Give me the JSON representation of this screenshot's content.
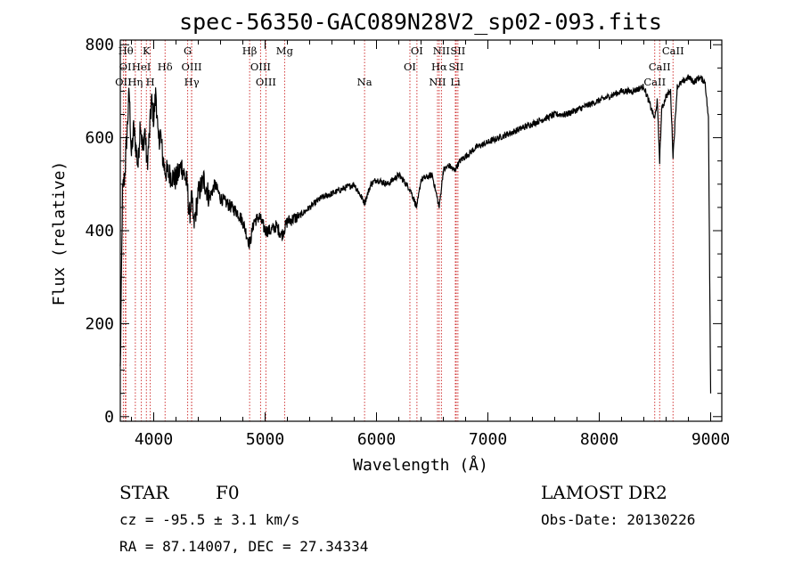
{
  "chart_data": {
    "type": "line",
    "title": "spec-56350-GAC089N28V2_sp02-093.fits",
    "xlabel": "Wavelength (Å)",
    "ylabel": "Flux (relative)",
    "xlim": [
      3700,
      9100
    ],
    "ylim": [
      -10,
      810
    ],
    "xticks": [
      4000,
      5000,
      6000,
      7000,
      8000,
      9000
    ],
    "yticks": [
      0,
      200,
      400,
      600,
      800
    ],
    "grid": false,
    "line_color": "#000000",
    "marker_color": "#cc2222",
    "series": [
      {
        "x": [
          3700,
          3720,
          3740,
          3760,
          3780,
          3800,
          3820,
          3840,
          3860,
          3880,
          3900,
          3920,
          3940,
          3960,
          3980,
          4000,
          4020,
          4040,
          4060,
          4080,
          4100,
          4150,
          4200,
          4250,
          4300,
          4320,
          4340,
          4360,
          4400,
          4450,
          4500,
          4550,
          4600,
          4650,
          4700,
          4750,
          4800,
          4861,
          4900,
          4950,
          5000,
          5050,
          5100,
          5150,
          5200,
          5300,
          5400,
          5500,
          5600,
          5700,
          5800,
          5893,
          5950,
          6000,
          6100,
          6200,
          6300,
          6363,
          6400,
          6500,
          6563,
          6600,
          6650,
          6700,
          6750,
          6800,
          6900,
          7000,
          7100,
          7200,
          7300,
          7400,
          7500,
          7600,
          7700,
          7800,
          7900,
          8000,
          8100,
          8200,
          8300,
          8400,
          8498,
          8520,
          8542,
          8560,
          8600,
          8640,
          8662,
          8700,
          8750,
          8800,
          8850,
          8900,
          8950,
          8980,
          9000
        ],
        "y": [
          100,
          480,
          520,
          610,
          700,
          560,
          620,
          580,
          540,
          640,
          570,
          620,
          540,
          600,
          680,
          640,
          700,
          590,
          610,
          560,
          530,
          520,
          510,
          540,
          500,
          430,
          470,
          410,
          480,
          510,
          470,
          500,
          470,
          460,
          450,
          440,
          420,
          370,
          420,
          430,
          400,
          400,
          410,
          390,
          420,
          430,
          450,
          470,
          480,
          490,
          500,
          460,
          500,
          510,
          500,
          520,
          490,
          450,
          510,
          520,
          450,
          530,
          540,
          530,
          550,
          560,
          580,
          590,
          600,
          610,
          620,
          630,
          640,
          650,
          650,
          660,
          670,
          680,
          690,
          700,
          700,
          710,
          640,
          680,
          550,
          660,
          690,
          700,
          560,
          710,
          720,
          730,
          720,
          730,
          720,
          640,
          50
        ]
      }
    ],
    "line_markers": [
      {
        "label": "OII",
        "x": 3727,
        "row": 2
      },
      {
        "label": "OI",
        "x": 3745,
        "row": 1
      },
      {
        "label": "Hθ",
        "x": 3750,
        "row": 0
      },
      {
        "label": "Hη",
        "x": 3835,
        "row": 2
      },
      {
        "label": "HeI",
        "x": 3889,
        "row": 1
      },
      {
        "label": "K",
        "x": 3934,
        "row": 0
      },
      {
        "label": "H",
        "x": 3969,
        "row": 2
      },
      {
        "label": "Hδ",
        "x": 4102,
        "row": 1
      },
      {
        "label": "G",
        "x": 4305,
        "row": 0
      },
      {
        "label": "OIII",
        "x": 4340,
        "row": 1
      },
      {
        "label": "Hγ",
        "x": 4341,
        "row": 2
      },
      {
        "label": "Hβ",
        "x": 4861,
        "row": 0
      },
      {
        "label": "OIII",
        "x": 4959,
        "row": 1
      },
      {
        "label": "OIII",
        "x": 5007,
        "row": 2
      },
      {
        "label": "Mg",
        "x": 5175,
        "row": 0
      },
      {
        "label": "Na",
        "x": 5893,
        "row": 2
      },
      {
        "label": "OI",
        "x": 6300,
        "row": 1
      },
      {
        "label": "OI",
        "x": 6363,
        "row": 0
      },
      {
        "label": "NII",
        "x": 6548,
        "row": 2
      },
      {
        "label": "Hα",
        "x": 6563,
        "row": 1
      },
      {
        "label": "NII",
        "x": 6583,
        "row": 0
      },
      {
        "label": "SII",
        "x": 6716,
        "row": 1
      },
      {
        "label": "Li",
        "x": 6708,
        "row": 2
      },
      {
        "label": "SII",
        "x": 6731,
        "row": 0
      },
      {
        "label": "CaII",
        "x": 8498,
        "row": 2
      },
      {
        "label": "CaII",
        "x": 8542,
        "row": 1
      },
      {
        "label": "CaII",
        "x": 8662,
        "row": 0
      }
    ]
  },
  "info": {
    "object_class": "STAR",
    "subclass": "F0",
    "survey": "LAMOST DR2",
    "redshift_text": "cz = -95.5 ± 3.1 km/s",
    "obs_date_text": "Obs-Date: 20130226",
    "coords_text": "RA =  87.14007, DEC =  27.34334"
  }
}
